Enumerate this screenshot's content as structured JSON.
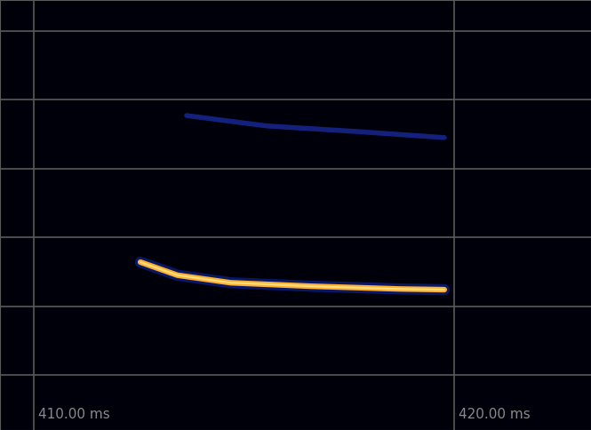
{
  "chart_data": {
    "type": "line",
    "xlim": [
      409.2,
      423.26
    ],
    "xticks": [
      {
        "value": 410,
        "label": "410.00 ms"
      },
      {
        "value": 420,
        "label": "420.00 ms"
      }
    ],
    "ylim": [
      0.2,
      6.45
    ],
    "yticks": [
      1,
      2,
      3,
      4,
      5,
      6
    ],
    "tick_labels": "x",
    "grid": true,
    "series": [
      {
        "color": "#ffb030",
        "x": [
          412.54,
          413.42,
          414.69,
          416.6,
          418.71,
          419.77
        ],
        "values": [
          2.64,
          2.45,
          2.34,
          2.29,
          2.25,
          2.24
        ]
      },
      {
        "color": "#1a2a9a",
        "x": [
          413.64,
          415.54,
          417.65,
          419.77
        ],
        "values": [
          4.77,
          4.62,
          4.54,
          4.45
        ]
      }
    ]
  }
}
